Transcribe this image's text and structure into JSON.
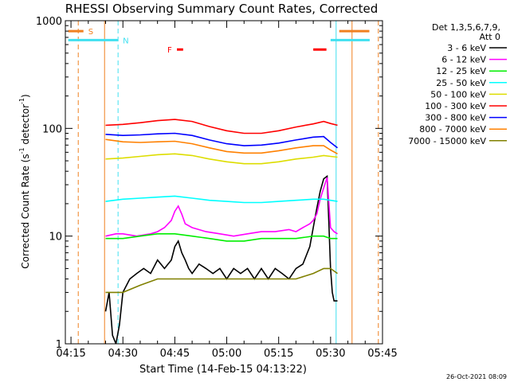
{
  "chart_data": {
    "type": "line",
    "title": "RHESSI Observing Summary Count Rates, Corrected",
    "xlabel": "Start Time (14-Feb-15 04:13:22)",
    "ylabel_main": "Corrected Count Rate (s",
    "ylabel_sup1": "-1",
    "ylabel_mid": " detector",
    "ylabel_sup2": "-1",
    "ylabel_end": ")",
    "ylim": [
      1,
      1000
    ],
    "yscale": "log",
    "xlim_minutes": [
      13.37,
      105.0
    ],
    "x_ticks": [
      {
        "label": "04:15",
        "t": 15
      },
      {
        "label": "04:30",
        "t": 30
      },
      {
        "label": "04:45",
        "t": 45
      },
      {
        "label": "05:00",
        "t": 60
      },
      {
        "label": "05:15",
        "t": 75
      },
      {
        "label": "05:30",
        "t": 90
      },
      {
        "label": "05:45",
        "t": 105
      }
    ],
    "y_ticks": [
      {
        "label": "1",
        "v": 1
      },
      {
        "label": "10",
        "v": 10
      },
      {
        "label": "100",
        "v": 100
      },
      {
        "label": "1000",
        "v": 1000
      }
    ],
    "legend_header": [
      "Det 1,3,5,6,7,9,",
      "Att 0"
    ],
    "legend_position": "right",
    "timestamp": "26-Oct-2021 08:09",
    "flags": {
      "S_label": "S",
      "N_label": "N",
      "F_label": "F",
      "saa_color": "#f08020",
      "night_color": "#40e0f0",
      "flare_color": "#ff0000",
      "saa_times": [
        [
          14.2,
          18.6
        ],
        [
          92.5,
          101.2
        ]
      ],
      "night_times": [
        [
          14.2,
          28.6
        ],
        [
          90.0,
          101.3
        ]
      ],
      "flare_times": [
        [
          45.6,
          47.4
        ],
        [
          85.0,
          88.8
        ]
      ],
      "saa_level": 800,
      "night_level": 660,
      "flare_level": 540
    },
    "vlines": [
      {
        "t": 17.1,
        "color": "#f08020",
        "dash": true
      },
      {
        "t": 24.7,
        "color": "#f08020",
        "dash": false
      },
      {
        "t": 28.6,
        "color": "#40e0f0",
        "dash": true
      },
      {
        "t": 91.6,
        "color": "#40e0f0",
        "dash": false
      },
      {
        "t": 96.2,
        "color": "#f08020",
        "dash": false
      },
      {
        "t": 103.8,
        "color": "#f08020",
        "dash": true
      }
    ],
    "series": [
      {
        "name": "3 - 6 keV",
        "color": "#000000",
        "t": [
          25,
          26,
          27,
          28,
          29,
          30,
          32,
          34,
          36,
          38,
          40,
          42,
          44,
          45,
          46,
          47,
          48,
          49,
          50,
          52,
          54,
          56,
          58,
          60,
          62,
          64,
          66,
          68,
          70,
          72,
          74,
          76,
          78,
          80,
          82,
          84,
          85,
          86,
          87,
          88,
          89,
          90,
          90.5,
          91,
          92
        ],
        "v": [
          2,
          3,
          1.2,
          1,
          1.5,
          3,
          4,
          4.5,
          5,
          4.5,
          6,
          5,
          6,
          8,
          9,
          7,
          6,
          5,
          4.5,
          5.5,
          5,
          4.5,
          5,
          4,
          5,
          4.5,
          5,
          4,
          5,
          4,
          5,
          4.5,
          4,
          5,
          5.5,
          8,
          12,
          18,
          26,
          34,
          36,
          5,
          3,
          2.5,
          2.5
        ]
      },
      {
        "name": "6 - 12 keV",
        "color": "#ff00ff",
        "t": [
          25,
          28,
          30,
          34,
          38,
          40,
          42,
          44,
          45,
          46,
          47,
          48,
          50,
          54,
          58,
          62,
          66,
          70,
          74,
          78,
          80,
          82,
          84,
          85,
          86,
          87,
          88,
          89,
          90,
          91,
          92
        ],
        "v": [
          10,
          10.5,
          10.5,
          10,
          10.5,
          11,
          12,
          14,
          17,
          19,
          16,
          13,
          12,
          11,
          10.5,
          10,
          10.5,
          11,
          11,
          11.5,
          11,
          12,
          13,
          14,
          16,
          22,
          28,
          35,
          12,
          11,
          10.5
        ]
      },
      {
        "name": "12 - 25 keV",
        "color": "#00ee00",
        "t": [
          25,
          30,
          35,
          40,
          45,
          50,
          55,
          60,
          65,
          70,
          75,
          80,
          85,
          88,
          90,
          92
        ],
        "v": [
          9.5,
          9.5,
          10,
          10.5,
          10.5,
          10,
          9.5,
          9,
          9,
          9.5,
          9.5,
          9.5,
          10,
          10,
          9.5,
          9.5
        ]
      },
      {
        "name": "25 - 50 keV",
        "color": "#00ffff",
        "t": [
          25,
          30,
          35,
          40,
          45,
          50,
          55,
          60,
          65,
          70,
          75,
          80,
          85,
          88,
          90,
          92
        ],
        "v": [
          21,
          22,
          22.5,
          23,
          23.5,
          22.5,
          21.5,
          21,
          20.5,
          20.5,
          21,
          21.5,
          22,
          22,
          21.5,
          21
        ]
      },
      {
        "name": "50 - 100 keV",
        "color": "#dddd00",
        "t": [
          25,
          30,
          35,
          40,
          45,
          50,
          55,
          60,
          65,
          70,
          75,
          80,
          85,
          88,
          90,
          92
        ],
        "v": [
          52,
          53,
          55,
          57,
          58,
          56,
          52,
          49,
          47,
          47,
          49,
          52,
          54,
          56,
          55,
          54
        ]
      },
      {
        "name": "100 - 300 keV",
        "color": "#ff0000",
        "t": [
          25,
          30,
          35,
          40,
          45,
          50,
          55,
          60,
          65,
          70,
          75,
          80,
          85,
          88,
          90,
          92
        ],
        "v": [
          107,
          109,
          113,
          118,
          121,
          116,
          104,
          95,
          90,
          90,
          95,
          103,
          110,
          116,
          111,
          107
        ]
      },
      {
        "name": "300 - 800 keV",
        "color": "#0000ff",
        "t": [
          25,
          30,
          35,
          40,
          45,
          50,
          55,
          60,
          65,
          70,
          75,
          80,
          85,
          88,
          90,
          92
        ],
        "v": [
          88,
          86,
          87,
          89,
          90,
          86,
          78,
          72,
          69,
          70,
          73,
          78,
          83,
          84,
          74,
          66
        ]
      },
      {
        "name": "800 - 7000 keV",
        "color": "#ff8000",
        "t": [
          25,
          30,
          35,
          40,
          45,
          50,
          55,
          60,
          65,
          70,
          75,
          80,
          85,
          88,
          90,
          92
        ],
        "v": [
          79,
          75,
          74,
          75,
          76,
          72,
          66,
          61,
          59,
          59,
          62,
          66,
          69,
          69,
          63,
          58
        ]
      },
      {
        "name": "7000 - 15000 keV",
        "color": "#808000",
        "t": [
          25,
          30,
          35,
          40,
          45,
          50,
          55,
          60,
          65,
          70,
          75,
          80,
          85,
          88,
          90,
          92
        ],
        "v": [
          3,
          3,
          3.5,
          4,
          4,
          4,
          4,
          4,
          4,
          4,
          4,
          4,
          4.5,
          5,
          5,
          4.5
        ]
      }
    ]
  }
}
